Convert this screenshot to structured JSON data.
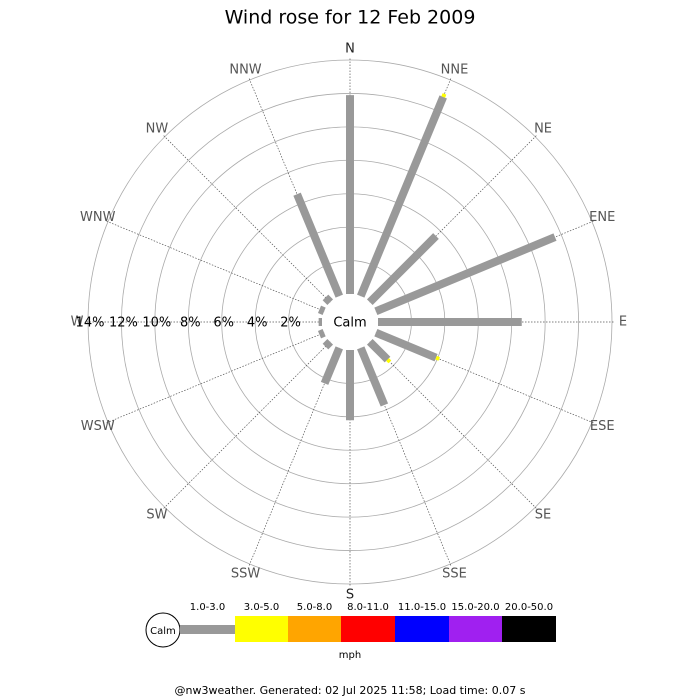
{
  "chart_data": {
    "type": "windrose",
    "title": "Wind rose for 12 Feb 2009",
    "categories": [
      "N",
      "NNE",
      "NE",
      "ENE",
      "E",
      "ESE",
      "SE",
      "SSE",
      "S",
      "SSW",
      "SW",
      "WSW",
      "W",
      "WNW",
      "NW",
      "NNW"
    ],
    "series": [
      {
        "name": "1.0-3.0",
        "color": "#999999",
        "values": [
          11.9,
          12.9,
          5.6,
          11.6,
          8.6,
          3.9,
          1.5,
          3.7,
          4.2,
          2.3,
          0.4,
          0.3,
          0.2,
          0.3,
          0.4,
          6.6
        ]
      },
      {
        "name": "3.0-5.0",
        "color": "#ffff00",
        "values": [
          0,
          0.2,
          0,
          0,
          0,
          0.2,
          0.2,
          0,
          0,
          0,
          0,
          0,
          0,
          0,
          0,
          0
        ]
      },
      {
        "name": "5.0-8.0",
        "color": "#ffa500",
        "values": [
          0,
          0,
          0,
          0,
          0,
          0,
          0,
          0,
          0,
          0,
          0,
          0,
          0,
          0,
          0,
          0
        ]
      },
      {
        "name": "8.0-11.0",
        "color": "#ff0000",
        "values": [
          0,
          0,
          0,
          0,
          0,
          0,
          0,
          0,
          0,
          0,
          0,
          0,
          0,
          0,
          0,
          0
        ]
      },
      {
        "name": "11.0-15.0",
        "color": "#0000ff",
        "values": [
          0,
          0,
          0,
          0,
          0,
          0,
          0,
          0,
          0,
          0,
          0,
          0,
          0,
          0,
          0,
          0
        ]
      },
      {
        "name": "15.0-20.0",
        "color": "#a020f0",
        "values": [
          0,
          0,
          0,
          0,
          0,
          0,
          0,
          0,
          0,
          0,
          0,
          0,
          0,
          0,
          0,
          0
        ]
      },
      {
        "name": "20.0-50.0",
        "color": "#000000",
        "values": [
          0,
          0,
          0,
          0,
          0,
          0,
          0,
          0,
          0,
          0,
          0,
          0,
          0,
          0,
          0,
          0
        ]
      }
    ],
    "rlim": [
      0,
      14
    ],
    "rticks": [
      {
        "value": 2,
        "label": "2%"
      },
      {
        "value": 4,
        "label": "4%"
      },
      {
        "value": 6,
        "label": "6%"
      },
      {
        "value": 8,
        "label": "8%"
      },
      {
        "value": 10,
        "label": "10%"
      },
      {
        "value": 12,
        "label": "12%"
      },
      {
        "value": 14,
        "label": "14%"
      }
    ],
    "calm_label": "Calm",
    "unit": "mph",
    "footer": "@nw3weather.  Generated: 02 Jul 2025 11:58; Load time: 0.07 s"
  }
}
